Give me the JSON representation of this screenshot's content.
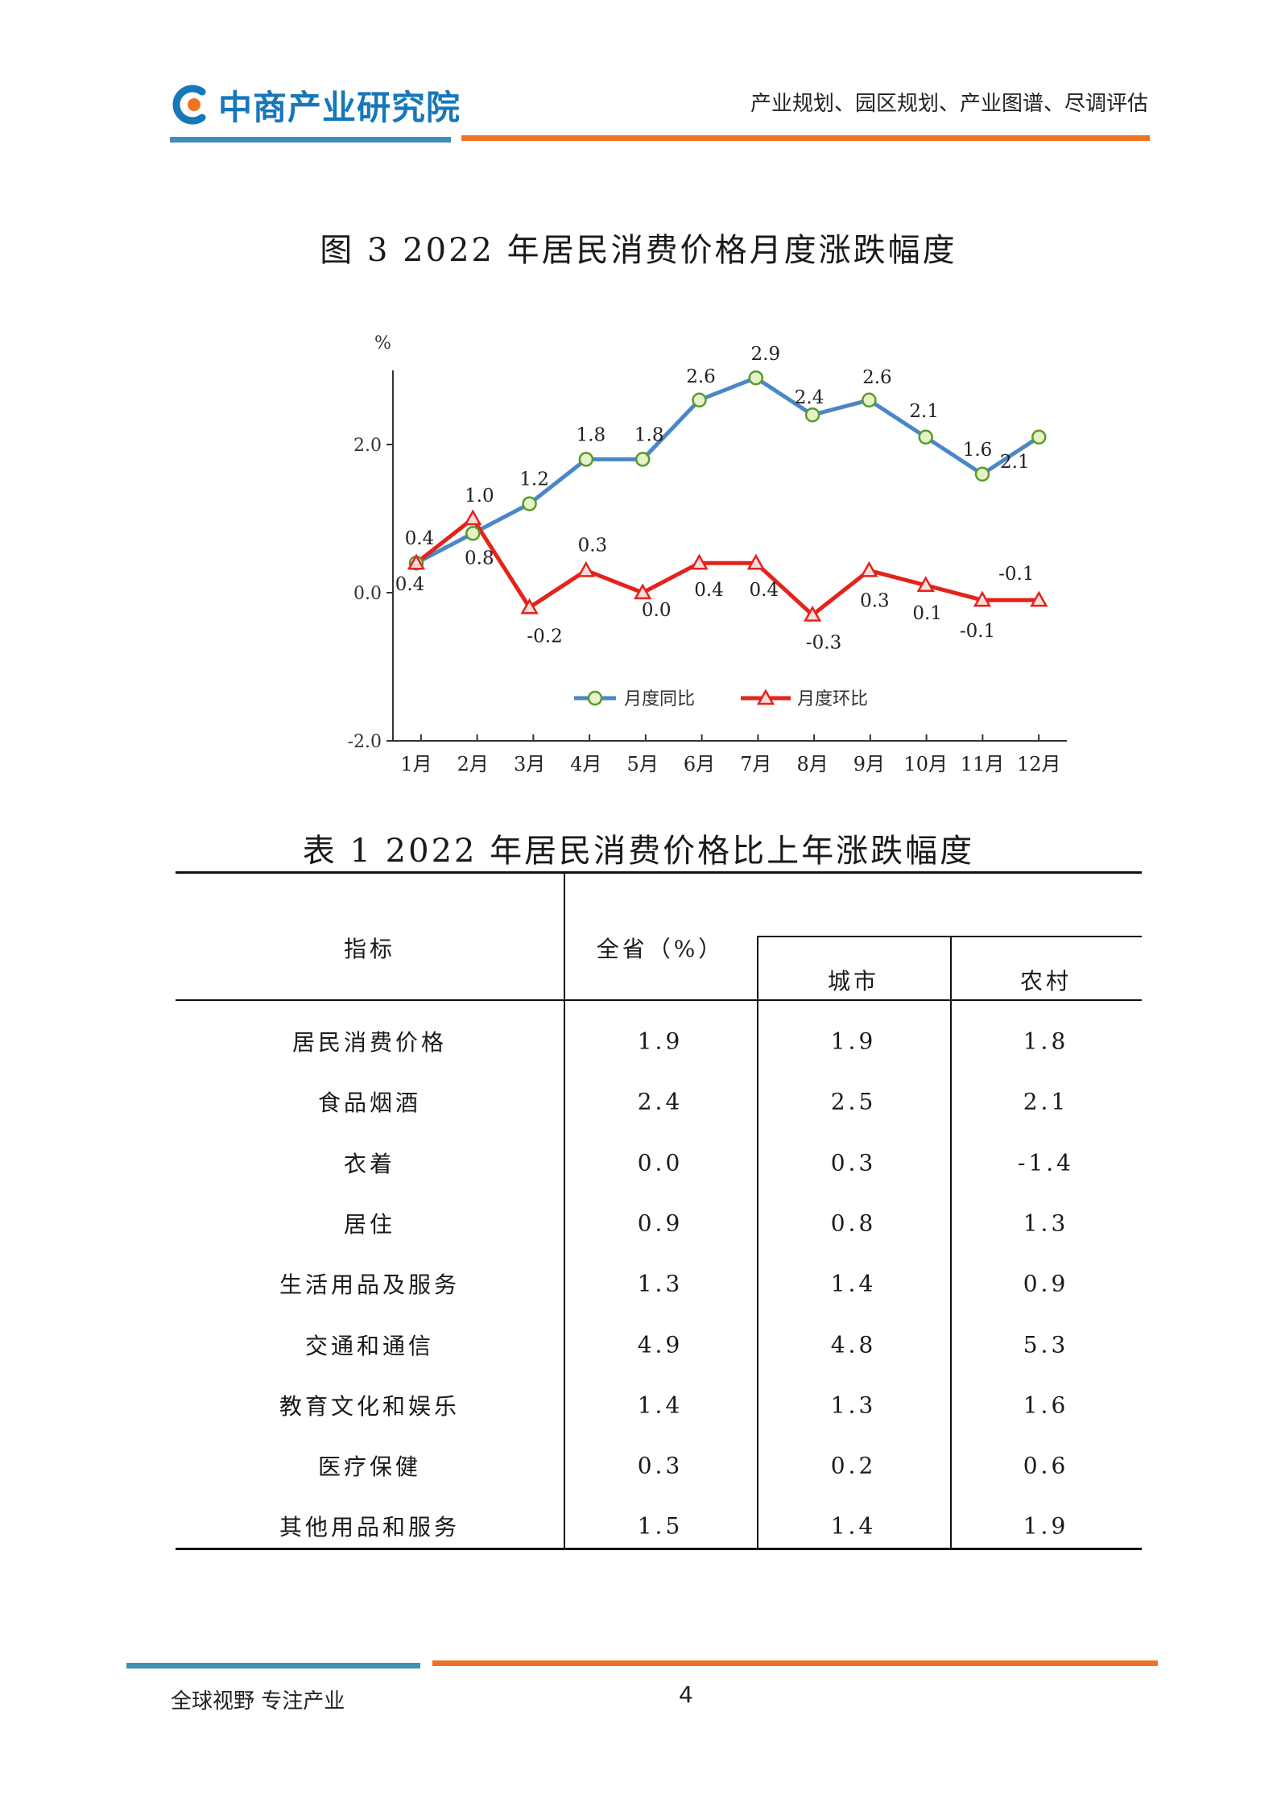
{
  "header": {
    "logo_text": "中商产业研究院",
    "slogan": "产业规划、园区规划、产业图谱、尽调评估",
    "colors": {
      "brand_blue": "#1677b9",
      "rule_blue": "#3f8fb5",
      "rule_orange": "#ee7322"
    }
  },
  "figure": {
    "title": "图 3   2022 年居民消费价格月度涨跌幅度"
  },
  "chart_data": {
    "type": "line",
    "y_unit": "%",
    "ylim": [
      -2.0,
      3.0
    ],
    "y_ticks": [
      2.0,
      0.0,
      -2.0
    ],
    "y_tick_labels": [
      "2.0",
      "0.0",
      "-2.0"
    ],
    "categories": [
      "1月",
      "2月",
      "3月",
      "4月",
      "5月",
      "6月",
      "7月",
      "8月",
      "9月",
      "10月",
      "11月",
      "12月"
    ],
    "grid": false,
    "legend_position": "bottom-center",
    "series": [
      {
        "name": "月度同比",
        "color": "#4a86c8",
        "marker": "circle",
        "marker_fill": "#e6f2c8",
        "marker_stroke": "#5a9a2a",
        "values": [
          0.4,
          0.8,
          1.2,
          1.8,
          1.8,
          2.6,
          2.9,
          2.4,
          2.6,
          2.1,
          1.6,
          2.1
        ],
        "labels": [
          "0.4",
          "0.8",
          "1.2",
          "1.8",
          "1.8",
          "2.6",
          "2.9",
          "2.4",
          "2.6",
          "2.1",
          "1.6",
          "2.1"
        ]
      },
      {
        "name": "月度环比",
        "color": "#e3231c",
        "marker": "triangle",
        "marker_fill": "#f7dede",
        "values": [
          0.4,
          1.0,
          -0.2,
          0.3,
          0.0,
          0.4,
          0.4,
          -0.3,
          0.3,
          0.1,
          -0.1,
          -0.1
        ],
        "labels": [
          "0.4",
          "1.0",
          "-0.2",
          "0.3",
          "0.0",
          "0.4",
          "0.4",
          "-0.3",
          "0.3",
          "0.1",
          "-0.1",
          "-0.1"
        ]
      }
    ]
  },
  "table": {
    "title": "表 1   2022 年居民消费价格比上年涨跌幅度",
    "headers": {
      "indicator": "指标",
      "province": "全省（%）",
      "urban": "城市",
      "rural": "农村"
    },
    "rows": [
      {
        "name": "居民消费价格",
        "province": "1.9",
        "urban": "1.9",
        "rural": "1.8"
      },
      {
        "name": "食品烟酒",
        "province": "2.4",
        "urban": "2.5",
        "rural": "2.1"
      },
      {
        "name": "衣着",
        "province": "0.0",
        "urban": "0.3",
        "rural": "-1.4"
      },
      {
        "name": "居住",
        "province": "0.9",
        "urban": "0.8",
        "rural": "1.3"
      },
      {
        "name": "生活用品及服务",
        "province": "1.3",
        "urban": "1.4",
        "rural": "0.9"
      },
      {
        "name": "交通和通信",
        "province": "4.9",
        "urban": "4.8",
        "rural": "5.3"
      },
      {
        "name": "教育文化和娱乐",
        "province": "1.4",
        "urban": "1.3",
        "rural": "1.6"
      },
      {
        "name": "医疗保健",
        "province": "0.3",
        "urban": "0.2",
        "rural": "0.6"
      },
      {
        "name": "其他用品和服务",
        "province": "1.5",
        "urban": "1.4",
        "rural": "1.9"
      }
    ]
  },
  "footer": {
    "slogan": "全球视野  专注产业",
    "page_number": "4"
  }
}
